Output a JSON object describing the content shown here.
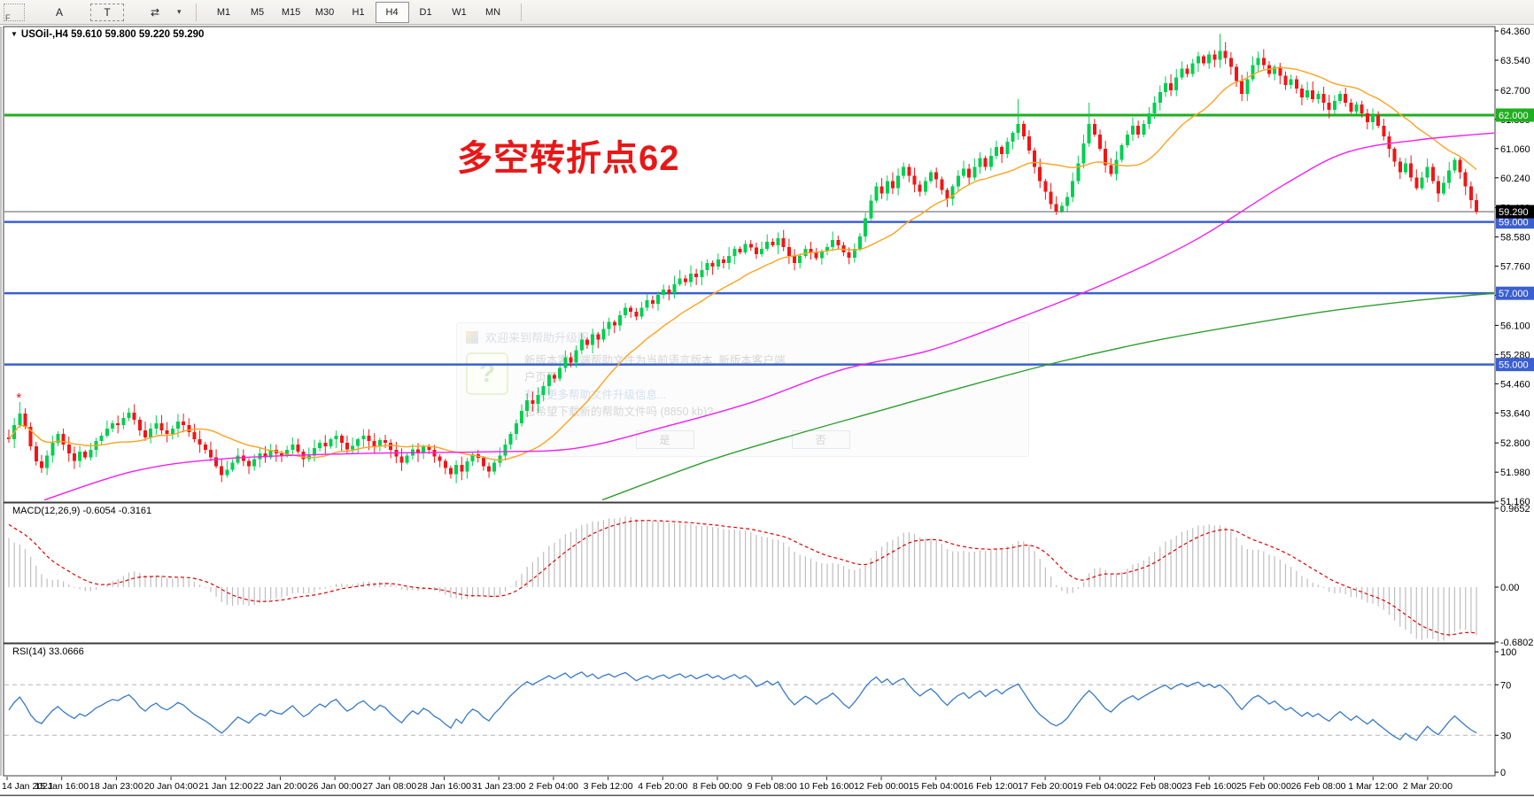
{
  "toolbar": {
    "grip_label": "F",
    "buttons": [
      {
        "name": "text-label-tool",
        "label": "A"
      },
      {
        "name": "text-box-tool",
        "label": "T"
      },
      {
        "name": "arrows-tool",
        "label": "⇄"
      }
    ],
    "dropdown_caret": "▾",
    "timeframes": [
      "M1",
      "M5",
      "M15",
      "M30",
      "H1",
      "H4",
      "D1",
      "W1",
      "MN"
    ],
    "active_timeframe": "H4"
  },
  "chart": {
    "title_marker": "▼",
    "title": "USOil-,H4  59.610 59.800 59.220 59.290",
    "symbol": "USOil-",
    "period": "H4",
    "annotation": {
      "text": "多空转折点62",
      "color": "#e81717"
    },
    "price_axis_ticks": [
      "64.360",
      "63.540",
      "62.700",
      "61.880",
      "61.060",
      "60.240",
      "59.400",
      "58.580",
      "57.760",
      "56.940",
      "56.100",
      "55.280",
      "54.460",
      "53.640",
      "52.800",
      "51.980",
      "51.160"
    ],
    "levels": [
      {
        "price": 62.0,
        "label": "62.000",
        "color": "#1fae1f",
        "width": 3
      },
      {
        "price": 59.0,
        "label": "59.000",
        "color": "#3a5fd0",
        "width": 2.5
      },
      {
        "price": 57.0,
        "label": "57.000",
        "color": "#3a5fd0",
        "width": 2.5
      },
      {
        "price": 55.0,
        "label": "55.000",
        "color": "#3a5fd0",
        "width": 2.5
      }
    ],
    "current_price": {
      "price": 59.29,
      "label": "59.290",
      "bg": "#000000",
      "line_color": "#5a5a64"
    }
  },
  "time_axis": {
    "labels": [
      "14 Jan 2021",
      "15 Jan 16:00",
      "18 Jan 23:00",
      "20 Jan 04:00",
      "21 Jan 12:00",
      "22 Jan 20:00",
      "26 Jan 00:00",
      "27 Jan 08:00",
      "28 Jan 16:00",
      "31 Jan 23:00",
      "2 Feb 04:00",
      "3 Feb 12:00",
      "4 Feb 20:00",
      "8 Feb 00:00",
      "9 Feb 08:00",
      "10 Feb 16:00",
      "12 Feb 00:00",
      "15 Feb 04:00",
      "16 Feb 12:00",
      "17 Feb 20:00",
      "19 Feb 04:00",
      "22 Feb 08:00",
      "23 Feb 16:00",
      "25 Feb 00:00",
      "26 Feb 08:00",
      "1 Mar 12:00",
      "2 Mar 20:00"
    ]
  },
  "macd_panel": {
    "name": "MACD(12,26,9)",
    "values": "-0.6054 -0.3161",
    "axis_ticks": [
      {
        "label": "0.9652",
        "value": 0.9652
      },
      {
        "label": "0.00",
        "value": 0.0
      },
      {
        "label": "-0.6802",
        "value": -0.6802
      }
    ]
  },
  "rsi_panel": {
    "name": "RSI(14)",
    "value": "33.0666",
    "axis_ticks": [
      {
        "label": "100",
        "value": 100
      },
      {
        "label": "70",
        "value": 70
      },
      {
        "label": "30",
        "value": 30
      },
      {
        "label": "0",
        "value": 0
      }
    ],
    "guide_levels": [
      70,
      30
    ]
  },
  "watermark_dialog": {
    "title": "欢迎来到帮助升级服务",
    "line1": "新版本客户端帮助文件为当前语言版本, 新版本客户端",
    "line2": "户页面.",
    "line3": "有关更多帮助文件升级信息...",
    "line4": "您希望下载新的帮助文件吗 (8850 kb)?",
    "yes_label": "是",
    "no_label": "否"
  },
  "chart_data": {
    "type": "candlestick",
    "symbol": "USOil-",
    "timeframe": "H4",
    "x_range": [
      "14 Jan 2021 00:00",
      "2 Mar 2021 20:00"
    ],
    "price_range": [
      51.16,
      64.36
    ],
    "up_color": "#00cf50",
    "down_color": "#f01616",
    "first_open": 52.95,
    "closes": [
      52.9,
      53.3,
      53.62,
      53.25,
      52.7,
      52.28,
      52.1,
      52.45,
      52.8,
      53.05,
      52.75,
      52.5,
      52.3,
      52.55,
      52.4,
      52.6,
      52.85,
      53.0,
      53.2,
      53.35,
      53.3,
      53.5,
      53.65,
      53.45,
      53.15,
      52.95,
      53.2,
      53.35,
      53.15,
      53.05,
      53.2,
      53.4,
      53.3,
      53.1,
      52.9,
      52.75,
      52.6,
      52.4,
      52.15,
      51.9,
      52.05,
      52.25,
      52.45,
      52.3,
      52.15,
      52.35,
      52.5,
      52.4,
      52.6,
      52.5,
      52.45,
      52.6,
      52.75,
      52.55,
      52.35,
      52.45,
      52.65,
      52.8,
      52.7,
      52.9,
      53.0,
      52.8,
      52.62,
      52.72,
      52.9,
      53.0,
      52.85,
      52.7,
      52.88,
      52.8,
      52.6,
      52.42,
      52.25,
      52.45,
      52.62,
      52.5,
      52.7,
      52.6,
      52.42,
      52.3,
      52.1,
      51.92,
      52.18,
      52.0,
      52.28,
      52.48,
      52.38,
      52.15,
      52.0,
      52.25,
      52.45,
      52.75,
      53.05,
      53.35,
      53.7,
      54.0,
      53.9,
      54.15,
      54.4,
      54.7,
      54.6,
      54.9,
      55.2,
      55.05,
      55.4,
      55.7,
      55.55,
      55.85,
      55.7,
      56.0,
      56.2,
      56.1,
      56.38,
      56.6,
      56.48,
      56.35,
      56.6,
      56.8,
      56.7,
      56.95,
      57.1,
      57.0,
      57.25,
      57.42,
      57.32,
      57.55,
      57.45,
      57.65,
      57.85,
      57.75,
      57.95,
      57.85,
      58.05,
      58.25,
      58.15,
      58.38,
      58.28,
      58.1,
      58.25,
      58.45,
      58.35,
      58.55,
      58.3,
      58.05,
      57.85,
      58.05,
      58.25,
      58.15,
      57.98,
      58.18,
      58.3,
      58.5,
      58.35,
      58.15,
      58.0,
      58.25,
      58.6,
      59.1,
      59.6,
      60.0,
      59.8,
      60.15,
      59.95,
      60.3,
      60.55,
      60.3,
      60.05,
      59.85,
      60.15,
      60.4,
      60.2,
      59.9,
      59.65,
      60.0,
      60.3,
      60.5,
      60.25,
      60.55,
      60.8,
      60.55,
      60.85,
      61.1,
      60.9,
      61.25,
      61.5,
      61.75,
      61.4,
      61.0,
      60.55,
      60.15,
      59.85,
      59.5,
      59.3,
      59.45,
      59.7,
      60.15,
      60.65,
      61.2,
      61.75,
      61.45,
      61.05,
      60.6,
      60.35,
      60.75,
      61.15,
      61.45,
      61.7,
      61.45,
      61.75,
      62.05,
      62.35,
      62.65,
      62.9,
      62.7,
      63.05,
      63.3,
      63.15,
      63.45,
      63.65,
      63.45,
      63.7,
      63.55,
      63.8,
      63.6,
      63.35,
      62.95,
      62.6,
      63.0,
      63.4,
      63.6,
      63.4,
      63.15,
      63.35,
      63.1,
      62.85,
      63.0,
      62.75,
      62.5,
      62.7,
      62.45,
      62.6,
      62.35,
      62.15,
      62.4,
      62.6,
      62.35,
      62.1,
      62.3,
      62.05,
      61.8,
      62.0,
      61.7,
      61.4,
      61.05,
      60.7,
      60.4,
      60.65,
      60.25,
      59.95,
      60.25,
      60.55,
      60.15,
      59.8,
      60.1,
      60.45,
      60.75,
      60.4,
      60.0,
      59.61,
      59.29
    ],
    "last_candle": {
      "open": 59.61,
      "high": 59.8,
      "low": 59.22,
      "close": 59.29
    },
    "wick_high_overrides": {
      "2": 53.95,
      "185": 62.45,
      "198": 62.35,
      "222": 64.28,
      "223": 64.05
    },
    "wick_low_overrides": {
      "39": 51.7,
      "81": 51.8,
      "88": 51.82,
      "172": 59.42,
      "192": 59.2
    },
    "start_marker": {
      "bar": 2,
      "price": 53.95,
      "glyph": "*",
      "color": "#f01616"
    },
    "ma_fast": {
      "type": "sma",
      "period": 20,
      "color": "#ffa21f"
    },
    "ma_mid": {
      "color": "#f21ff2",
      "points": [
        [
          50,
          51.2
        ],
        [
          150,
          52.0
        ],
        [
          250,
          52.35
        ],
        [
          400,
          52.5
        ],
        [
          550,
          52.55
        ],
        [
          650,
          52.65
        ],
        [
          750,
          53.25
        ],
        [
          850,
          53.95
        ],
        [
          950,
          54.85
        ],
        [
          1050,
          55.4
        ],
        [
          1150,
          56.3
        ],
        [
          1250,
          57.3
        ],
        [
          1350,
          58.5
        ],
        [
          1450,
          60.05
        ],
        [
          1520,
          60.95
        ],
        [
          1600,
          61.3
        ],
        [
          1688,
          61.5
        ]
      ]
    },
    "ma_slow": {
      "color": "#2e9e2e",
      "points": [
        [
          680,
          51.2
        ],
        [
          800,
          52.3
        ],
        [
          900,
          53.05
        ],
        [
          1000,
          53.75
        ],
        [
          1100,
          54.45
        ],
        [
          1200,
          55.1
        ],
        [
          1300,
          55.65
        ],
        [
          1400,
          56.1
        ],
        [
          1500,
          56.5
        ],
        [
          1600,
          56.8
        ],
        [
          1688,
          57.0
        ]
      ]
    },
    "macd": {
      "fast": 12,
      "slow": 26,
      "signal": 9,
      "hist_color": "#bdbdbd",
      "signal_color": "#e00000",
      "current": -0.6054,
      "current_signal": -0.3161
    },
    "rsi": {
      "period": 14,
      "color": "#3779c8",
      "current": 33.0666
    }
  }
}
